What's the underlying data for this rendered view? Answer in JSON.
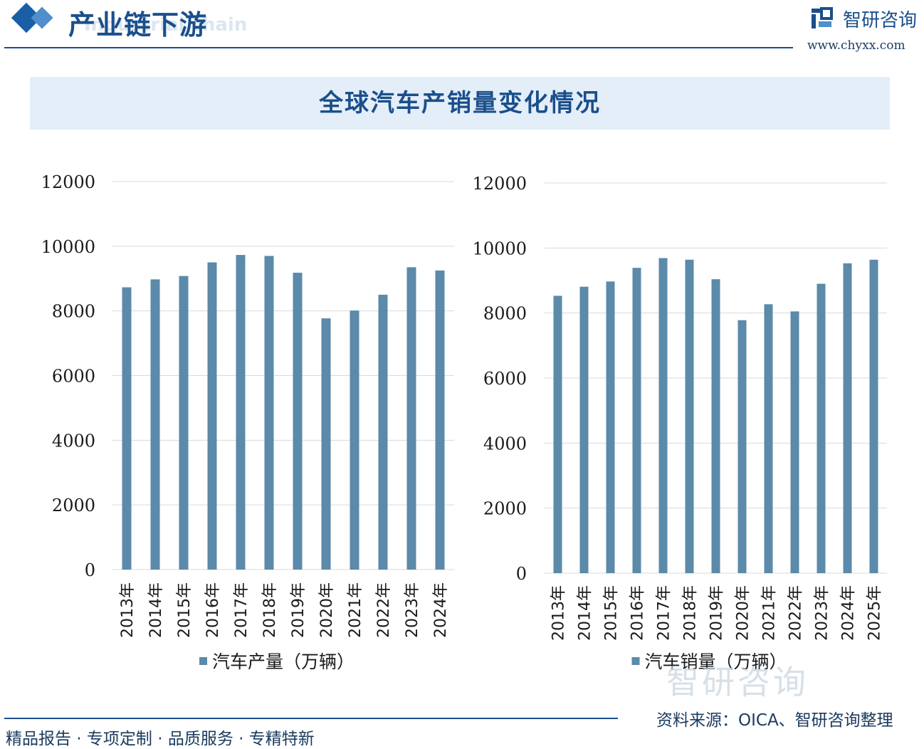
{
  "header": {
    "section_title": "产业链下游",
    "section_subtitle": "Industrial chain",
    "brand": "智研咨询",
    "site": "www.chyxx.com"
  },
  "banner": {
    "title": "全球汽车产销量变化情况"
  },
  "colors": {
    "bar": "#5b8aaa",
    "accent": "#1a4f8c",
    "grid": "#d9d9d9"
  },
  "chart_data": [
    {
      "type": "bar",
      "categories": [
        "2013年",
        "2014年",
        "2015年",
        "2016年",
        "2017年",
        "2018年",
        "2019年",
        "2020年",
        "2021年",
        "2022年",
        "2023年",
        "2024年"
      ],
      "series": [
        {
          "name": "汽车产量（万辆）",
          "values": [
            8730,
            8975,
            9080,
            9500,
            9730,
            9700,
            9180,
            7770,
            8010,
            8500,
            9350,
            9250
          ]
        }
      ],
      "ylim": [
        0,
        12000
      ],
      "yticks": [
        "0",
        "2000",
        "4000",
        "6000",
        "8000",
        "10000",
        "12000"
      ],
      "grid": true,
      "legend": "bottom"
    },
    {
      "type": "bar",
      "categories": [
        "2013年",
        "2014年",
        "2015年",
        "2016年",
        "2017年",
        "2018年",
        "2019年",
        "2020年",
        "2021年",
        "2022年",
        "2023年",
        "2024年",
        "2025年"
      ],
      "series": [
        {
          "name": "汽车销量（万辆）",
          "values": [
            8530,
            8810,
            8970,
            9390,
            9690,
            9640,
            9040,
            7780,
            8270,
            8050,
            8900,
            9530,
            9640
          ]
        }
      ],
      "ylim": [
        0,
        12000
      ],
      "yticks": [
        "0",
        "2000",
        "4000",
        "6000",
        "8000",
        "10000",
        "12000"
      ],
      "grid": true,
      "legend": "bottom"
    }
  ],
  "footer": {
    "slogan": "精品报告 · 专项定制 · 品质服务 · 专精特新",
    "source": "资料来源：OICA、智研咨询整理",
    "watermark": "智研咨询"
  }
}
